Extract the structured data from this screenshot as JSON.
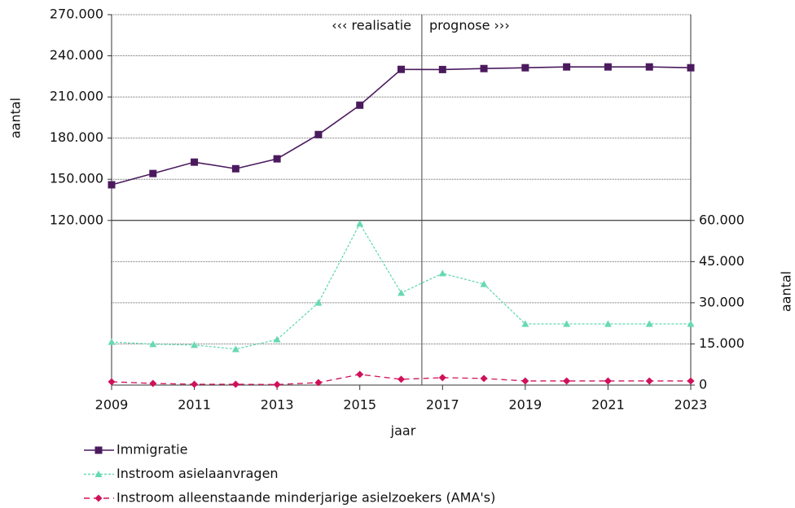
{
  "chart_data": {
    "type": "line",
    "x": [
      2009,
      2010,
      2011,
      2012,
      2013,
      2014,
      2015,
      2016,
      2017,
      2018,
      2019,
      2020,
      2021,
      2022,
      2023
    ],
    "xlim": [
      2009,
      2023
    ],
    "xticks": [
      2009,
      2011,
      2013,
      2015,
      2017,
      2019,
      2021,
      2023
    ],
    "xlabel": "jaar",
    "ylabel": "aantal",
    "y2label": "aantal",
    "ylim": [
      0,
      270000
    ],
    "yticks": [
      {
        "value": 120000,
        "label": "120.000"
      },
      {
        "value": 150000,
        "label": "150.000"
      },
      {
        "value": 180000,
        "label": "180.000"
      },
      {
        "value": 210000,
        "label": "210.000"
      },
      {
        "value": 240000,
        "label": "240.000"
      },
      {
        "value": 270000,
        "label": "270.000"
      }
    ],
    "y2lim": [
      0,
      135000
    ],
    "y2ticks": [
      0,
      {
        "value": 15000,
        "label": "15.000"
      },
      {
        "value": 30000,
        "label": "30.000"
      },
      {
        "value": 45000,
        "label": "45.000"
      },
      {
        "value": 60000,
        "label": "60.000"
      }
    ],
    "grid": true,
    "divider": 2016.5,
    "annotations": [
      "‹‹‹ realisatie",
      "prognose ›››"
    ],
    "series": [
      {
        "name": "Immigratie",
        "color": "#4b1a5e",
        "marker": "square",
        "linestyle": "solid",
        "axis": "y",
        "values": [
          146000,
          154200,
          162500,
          157700,
          164900,
          182600,
          204000,
          230100,
          230000,
          230700,
          231300,
          231900,
          231900,
          231900,
          231300
        ]
      },
      {
        "name": "Instroom asielaanvragen",
        "color": "#66d9b0",
        "marker": "triangle",
        "linestyle": "dotted",
        "axis": "y2",
        "values": [
          15700,
          14900,
          14600,
          13100,
          16600,
          30000,
          58800,
          33600,
          40700,
          36800,
          22300,
          22300,
          22300,
          22300,
          22300
        ]
      },
      {
        "name": "Instroom alleenstaande minderjarige asielzoekers (AMA's)",
        "color": "#d0105a",
        "marker": "diamond",
        "linestyle": "dashed",
        "axis": "y2",
        "values": [
          1200,
          600,
          300,
          300,
          200,
          900,
          3900,
          2100,
          2700,
          2400,
          1500,
          1500,
          1500,
          1500,
          1500
        ]
      }
    ]
  }
}
